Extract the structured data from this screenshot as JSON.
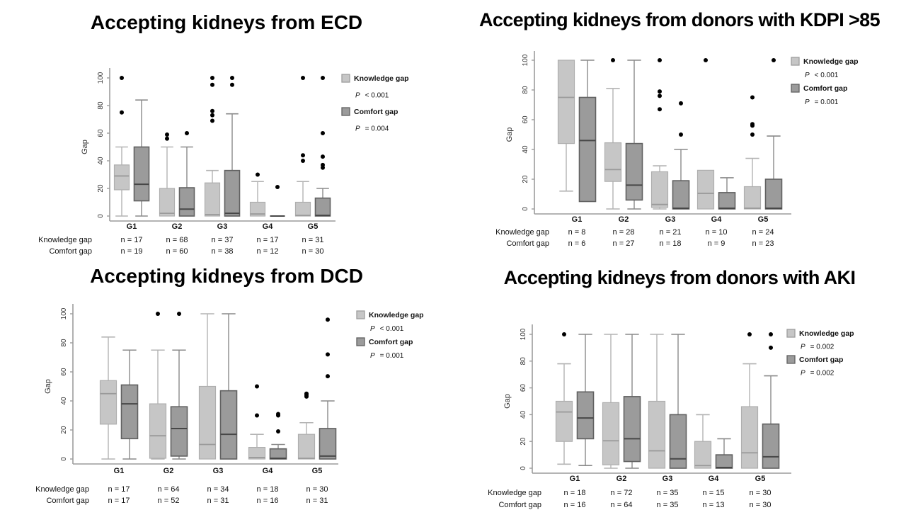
{
  "page": {
    "background": "#ffffff"
  },
  "colors": {
    "knowledge_fill": "#c6c6c6",
    "knowledge_stroke": "#aeaeae",
    "knowledge_median": "#9a9a9a",
    "knowledge_whisker": "#b3b3b3",
    "comfort_fill": "#9b9b9b",
    "comfort_stroke": "#616161",
    "comfort_median": "#474747",
    "comfort_whisker": "#8a8a8a",
    "outlier": "#000000",
    "axis": "#9c9c9c",
    "text": "#111111"
  },
  "sample_table": {
    "n_prefix": "n = ",
    "row_labels": [
      "Knowledge gap",
      "Comfort gap"
    ]
  },
  "chart_data": [
    {
      "type": "box",
      "id": "ecd",
      "title": "Accepting kidneys from ECD",
      "xlabel": "",
      "ylabel": "Gap",
      "ylim": [
        0,
        100
      ],
      "yticks": [
        0,
        20,
        40,
        60,
        80,
        100
      ],
      "categories": [
        "G1",
        "G2",
        "G3",
        "G4",
        "G5"
      ],
      "grid": false,
      "legend_position": "right",
      "series": [
        {
          "name": "Knowledge gap",
          "p_label": "P",
          "p_rest": "< 0.001",
          "n": [
            17,
            68,
            37,
            17,
            31
          ],
          "boxes": [
            {
              "low": 0,
              "q1": 19,
              "median": 29,
              "q3": 37,
              "high": 50,
              "outliers": [
                75,
                100
              ]
            },
            {
              "low": 0,
              "q1": 0,
              "median": 2,
              "q3": 20,
              "high": 50,
              "outliers": [
                56,
                59
              ]
            },
            {
              "low": 0,
              "q1": 0,
              "median": 1,
              "q3": 24,
              "high": 33,
              "outliers": [
                69,
                73,
                76,
                95,
                100
              ]
            },
            {
              "low": 0,
              "q1": 0,
              "median": 1.5,
              "q3": 10,
              "high": 25,
              "outliers": [
                30
              ]
            },
            {
              "low": 0,
              "q1": 0,
              "median": 0.5,
              "q3": 10,
              "high": 25,
              "outliers": [
                40,
                44,
                100
              ]
            }
          ]
        },
        {
          "name": "Comfort gap",
          "p_label": "P",
          "p_rest": "= 0.004",
          "n": [
            19,
            60,
            38,
            12,
            30
          ],
          "boxes": [
            {
              "low": 0,
              "q1": 11,
              "median": 23,
              "q3": 50,
              "high": 84,
              "outliers": []
            },
            {
              "low": 0,
              "q1": 0,
              "median": 5,
              "q3": 20.5,
              "high": 50,
              "outliers": [
                60
              ]
            },
            {
              "low": 0,
              "q1": 0,
              "median": 2,
              "q3": 33,
              "high": 74,
              "outliers": [
                95,
                100
              ]
            },
            {
              "low": 0,
              "q1": 0,
              "median": 0,
              "q3": 0,
              "high": 0,
              "outliers": [
                21
              ]
            },
            {
              "low": 0,
              "q1": 0,
              "median": 0.5,
              "q3": 13,
              "high": 20,
              "outliers": [
                35,
                37,
                43,
                60,
                100
              ]
            }
          ]
        }
      ]
    },
    {
      "type": "box",
      "id": "kdpi85",
      "title": "Accepting kidneys from donors with KDPI >85",
      "xlabel": "",
      "ylabel": "Gap",
      "ylim": [
        0,
        100
      ],
      "yticks": [
        0,
        20,
        40,
        60,
        80,
        100
      ],
      "categories": [
        "G1",
        "G2",
        "G3",
        "G4",
        "G5"
      ],
      "grid": false,
      "legend_position": "right",
      "series": [
        {
          "name": "Knowledge gap",
          "p_label": "P",
          "p_rest": "< 0.001",
          "n": [
            8,
            28,
            21,
            10,
            24
          ],
          "boxes": [
            {
              "low": 12,
              "q1": 44,
              "median": 75,
              "q3": 100,
              "high": 100,
              "outliers": []
            },
            {
              "low": 0,
              "q1": 18.5,
              "median": 26.5,
              "q3": 44.5,
              "high": 81,
              "outliers": [
                100
              ]
            },
            {
              "low": 0,
              "q1": 1,
              "median": 3,
              "q3": 25,
              "high": 29,
              "outliers": [
                67,
                76,
                79,
                100
              ]
            },
            {
              "low": 0,
              "q1": 0,
              "median": 10.5,
              "q3": 26,
              "high": 26,
              "outliers": [
                100
              ]
            },
            {
              "low": 0,
              "q1": 0,
              "median": 0.5,
              "q3": 15,
              "high": 34,
              "outliers": [
                50,
                56,
                57,
                75
              ]
            }
          ]
        },
        {
          "name": "Comfort gap",
          "p_label": "P",
          "p_rest": "= 0.001",
          "n": [
            6,
            27,
            18,
            9,
            23
          ],
          "boxes": [
            {
              "low": 5,
              "q1": 5,
              "median": 46,
              "q3": 75,
              "high": 100,
              "outliers": []
            },
            {
              "low": 0,
              "q1": 6,
              "median": 16,
              "q3": 44,
              "high": 100,
              "outliers": []
            },
            {
              "low": 0,
              "q1": 0,
              "median": 0.5,
              "q3": 19,
              "high": 40,
              "outliers": [
                50,
                71
              ]
            },
            {
              "low": 0,
              "q1": 0,
              "median": 0.5,
              "q3": 11,
              "high": 21,
              "outliers": []
            },
            {
              "low": 0,
              "q1": 0,
              "median": 0.5,
              "q3": 20,
              "high": 49,
              "outliers": [
                100
              ]
            }
          ]
        }
      ]
    },
    {
      "type": "box",
      "id": "dcd",
      "title": "Accepting kidneys from DCD",
      "xlabel": "",
      "ylabel": "Gap",
      "ylim": [
        0,
        100
      ],
      "yticks": [
        0,
        20,
        40,
        60,
        80,
        100
      ],
      "categories": [
        "G1",
        "G2",
        "G3",
        "G4",
        "G5"
      ],
      "grid": false,
      "legend_position": "right",
      "series": [
        {
          "name": "Knowledge gap",
          "p_label": "P",
          "p_rest": "< 0.001",
          "n": [
            17,
            64,
            34,
            18,
            30
          ],
          "boxes": [
            {
              "low": 0,
              "q1": 24,
              "median": 45,
              "q3": 54,
              "high": 84,
              "outliers": []
            },
            {
              "low": 0,
              "q1": 0.5,
              "median": 16,
              "q3": 38,
              "high": 75,
              "outliers": [
                100
              ]
            },
            {
              "low": 0,
              "q1": 0,
              "median": 10,
              "q3": 50,
              "high": 100,
              "outliers": []
            },
            {
              "low": 0,
              "q1": 0,
              "median": 1,
              "q3": 8,
              "high": 17,
              "outliers": [
                30,
                50
              ]
            },
            {
              "low": 0,
              "q1": 0,
              "median": 0.5,
              "q3": 17,
              "high": 25,
              "outliers": [
                43,
                44,
                45
              ]
            }
          ]
        },
        {
          "name": "Comfort gap",
          "p_label": "P",
          "p_rest": "= 0.001",
          "n": [
            17,
            52,
            31,
            16,
            31
          ],
          "boxes": [
            {
              "low": 0,
              "q1": 14,
              "median": 38,
              "q3": 51,
              "high": 75,
              "outliers": []
            },
            {
              "low": 0,
              "q1": 2,
              "median": 21,
              "q3": 36,
              "high": 75,
              "outliers": [
                100
              ]
            },
            {
              "low": 0,
              "q1": 0,
              "median": 17,
              "q3": 47,
              "high": 100,
              "outliers": []
            },
            {
              "low": 0,
              "q1": 0,
              "median": 0.5,
              "q3": 7,
              "high": 10,
              "outliers": [
                19,
                30,
                31
              ]
            },
            {
              "low": 0,
              "q1": 0,
              "median": 2,
              "q3": 21,
              "high": 40,
              "outliers": [
                57,
                72,
                96
              ]
            }
          ]
        }
      ]
    },
    {
      "type": "box",
      "id": "aki",
      "title": "Accepting kidneys from donors with AKI",
      "xlabel": "",
      "ylabel": "Gap",
      "ylim": [
        0,
        100
      ],
      "yticks": [
        0,
        20,
        40,
        60,
        80,
        100
      ],
      "categories": [
        "G1",
        "G2",
        "G3",
        "G4",
        "G5"
      ],
      "grid": false,
      "legend_position": "right",
      "series": [
        {
          "name": "Knowledge gap",
          "p_label": "P",
          "p_rest": "= 0.002",
          "n": [
            18,
            72,
            35,
            15,
            30
          ],
          "boxes": [
            {
              "low": 3,
              "q1": 20,
              "median": 42,
              "q3": 50,
              "high": 78,
              "outliers": [
                100
              ]
            },
            {
              "low": 0,
              "q1": 2.5,
              "median": 20.5,
              "q3": 49,
              "high": 100,
              "outliers": []
            },
            {
              "low": 0,
              "q1": 0,
              "median": 13,
              "q3": 50,
              "high": 100,
              "outliers": []
            },
            {
              "low": 0,
              "q1": 0,
              "median": 2,
              "q3": 20,
              "high": 40,
              "outliers": []
            },
            {
              "low": 0,
              "q1": 0,
              "median": 11.5,
              "q3": 46,
              "high": 78,
              "outliers": [
                100
              ]
            }
          ]
        },
        {
          "name": "Comfort gap",
          "p_label": "P",
          "p_rest": "= 0.002",
          "n": [
            16,
            64,
            35,
            13,
            30
          ],
          "boxes": [
            {
              "low": 2,
              "q1": 22,
              "median": 37.5,
              "q3": 57,
              "high": 100,
              "outliers": []
            },
            {
              "low": 0,
              "q1": 5,
              "median": 22,
              "q3": 53.5,
              "high": 100,
              "outliers": []
            },
            {
              "low": 0,
              "q1": 0,
              "median": 7,
              "q3": 40,
              "high": 100,
              "outliers": []
            },
            {
              "low": 0,
              "q1": 0,
              "median": 0.5,
              "q3": 10,
              "high": 22,
              "outliers": []
            },
            {
              "low": 0,
              "q1": 0,
              "median": 8.5,
              "q3": 33,
              "high": 69,
              "outliers": [
                90,
                100
              ]
            }
          ]
        }
      ]
    }
  ]
}
